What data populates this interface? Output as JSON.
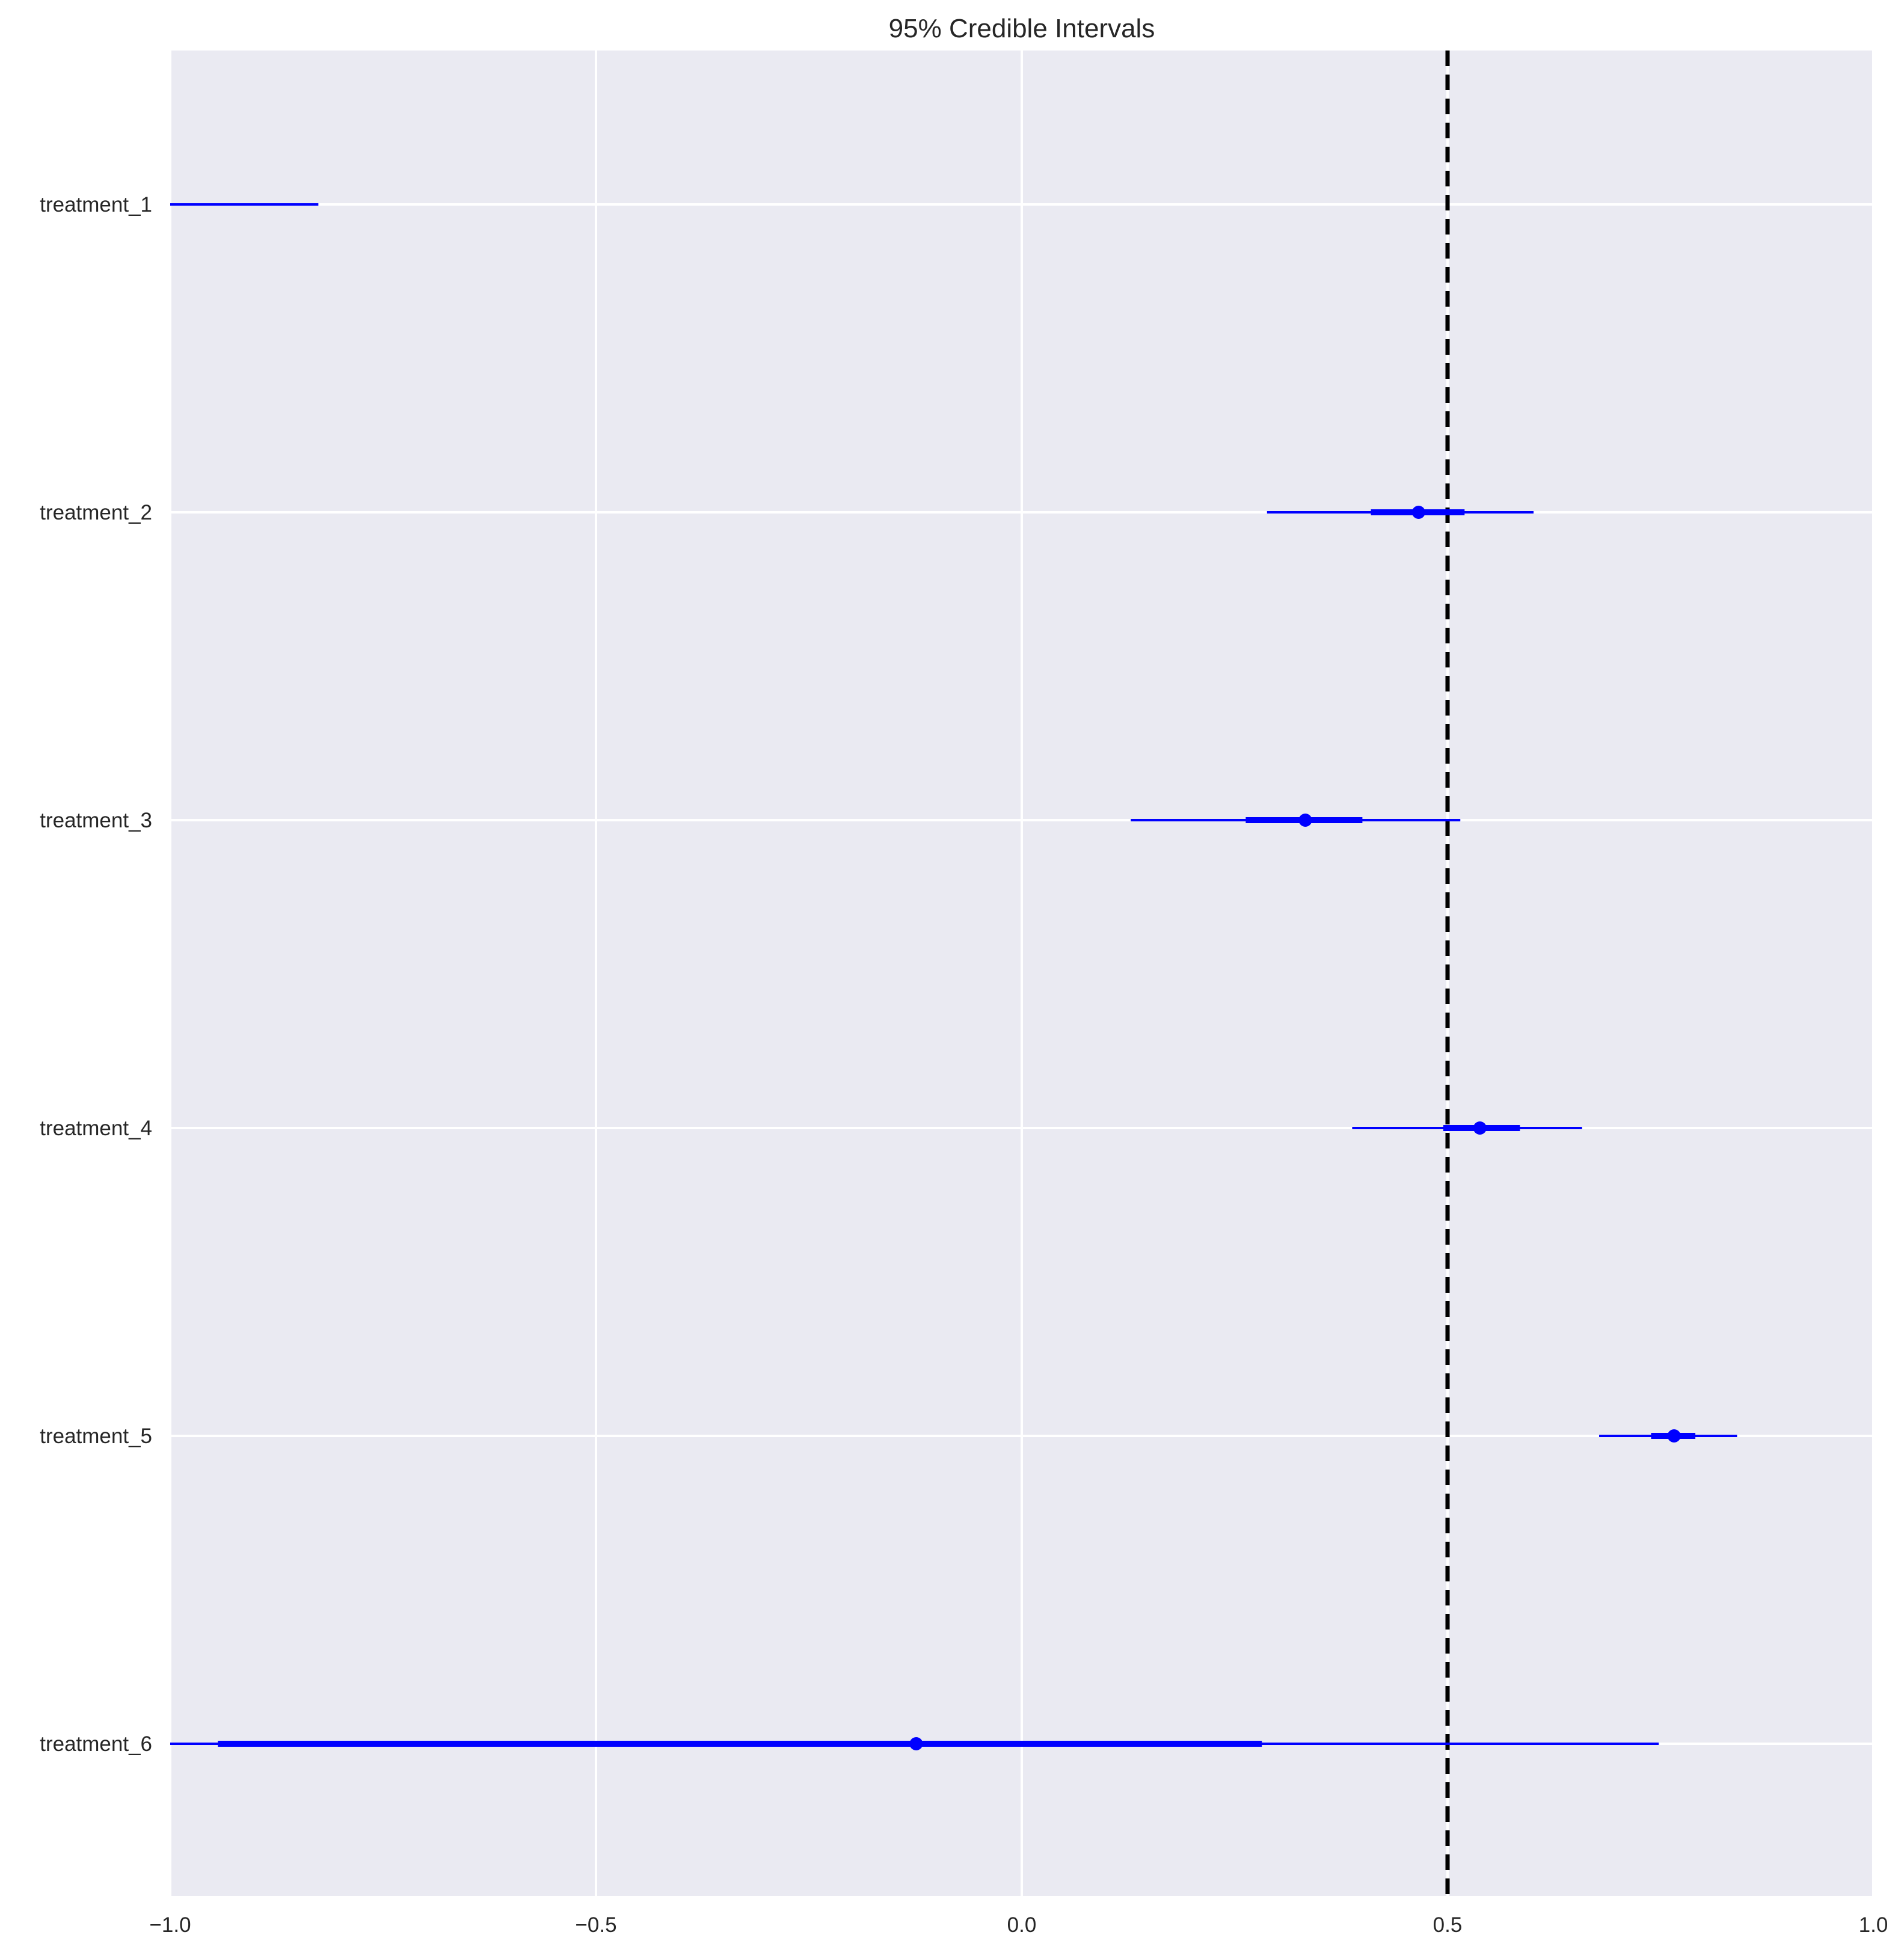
{
  "chart_data": {
    "type": "forest",
    "title": "95% Credible Intervals",
    "xlabel": "",
    "ylabel": "",
    "xlim": [
      -1.0,
      1.0
    ],
    "x_ticks": [
      -1.0,
      -0.5,
      0.0,
      0.5,
      1.0
    ],
    "x_tick_labels": [
      "−1.0",
      "−0.5",
      "0.0",
      "0.5",
      "1.0"
    ],
    "reference_line": 0.5,
    "grid": true,
    "colors": {
      "background": "#EAEAF2",
      "grid": "#FFFFFF",
      "interval": "#0000FF",
      "reference": "#000000"
    },
    "series": [
      {
        "name": "treatment_1",
        "lower_95": -1.0,
        "upper_95": -0.826,
        "lower_50": null,
        "upper_50": null,
        "median": null
      },
      {
        "name": "treatment_2",
        "lower_95": 0.288,
        "upper_95": 0.601,
        "lower_50": 0.41,
        "upper_50": 0.52,
        "median": 0.466
      },
      {
        "name": "treatment_3",
        "lower_95": 0.128,
        "upper_95": 0.515,
        "lower_50": 0.263,
        "upper_50": 0.4,
        "median": 0.333
      },
      {
        "name": "treatment_4",
        "lower_95": 0.388,
        "upper_95": 0.658,
        "lower_50": 0.495,
        "upper_50": 0.585,
        "median": 0.538
      },
      {
        "name": "treatment_5",
        "lower_95": 0.678,
        "upper_95": 0.84,
        "lower_50": 0.739,
        "upper_50": 0.791,
        "median": 0.766
      },
      {
        "name": "treatment_6",
        "lower_95": -1.0,
        "upper_95": 0.748,
        "lower_50": -0.944,
        "upper_50": 0.282,
        "median": -0.124
      }
    ]
  }
}
